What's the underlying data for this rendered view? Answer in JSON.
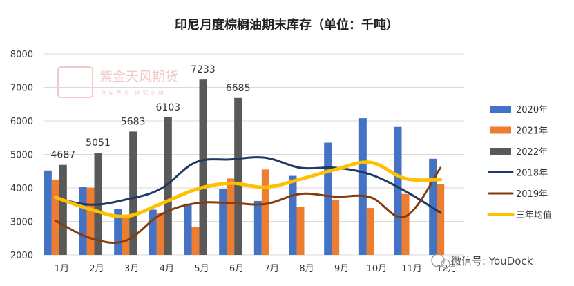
{
  "chart_data": {
    "type": "bar",
    "title": "印尼月度棕榈油期末库存（单位：千吨）",
    "categories": [
      "1月",
      "2月",
      "3月",
      "4月",
      "5月",
      "6月",
      "7月",
      "8月",
      "9月",
      "10月",
      "11月",
      "12月"
    ],
    "ylim": [
      2000,
      8000
    ],
    "yticks": [
      2000,
      3000,
      4000,
      5000,
      6000,
      7000,
      8000
    ],
    "grid": true,
    "legend_position": "right",
    "bar_series": [
      {
        "name": "2020年",
        "color": "#4472c4",
        "values": [
          4520,
          4030,
          3380,
          3350,
          3530,
          3960,
          3610,
          4360,
          5350,
          6080,
          5820,
          4870
        ]
      },
      {
        "name": "2021年",
        "color": "#ed7d31",
        "values": [
          4250,
          4010,
          3200,
          3250,
          2840,
          4280,
          4550,
          3430,
          3650,
          3400,
          3820,
          4120
        ]
      },
      {
        "name": "2022年",
        "color": "#595959",
        "values": [
          4687,
          5051,
          5683,
          6103,
          7233,
          6685
        ]
      }
    ],
    "line_series": [
      {
        "name": "2018年",
        "color": "#1f3864",
        "values": [
          3700,
          3500,
          3650,
          3970,
          4760,
          4850,
          4900,
          4600,
          4600,
          4400,
          3900,
          3260
        ]
      },
      {
        "name": "2019年",
        "color": "#843c0c",
        "values": [
          3020,
          2500,
          2420,
          3200,
          3540,
          3550,
          3520,
          3820,
          3740,
          3720,
          3150,
          4600
        ]
      },
      {
        "name": "三年均值",
        "color": "#ffc000",
        "values": [
          3720,
          3360,
          3150,
          3520,
          3950,
          4140,
          4020,
          4260,
          4550,
          4760,
          4280,
          4250
        ]
      }
    ],
    "data_labels": {
      "series": "2022年",
      "values": [
        "4687",
        "5051",
        "5683",
        "6103",
        "7233",
        "6685"
      ]
    }
  },
  "watermark": {
    "text": "紫金天风期货",
    "subtext": "立足产业 研究驱动",
    "logo_text": "紫金"
  },
  "wechat": {
    "text": "微信号: YouDock"
  }
}
